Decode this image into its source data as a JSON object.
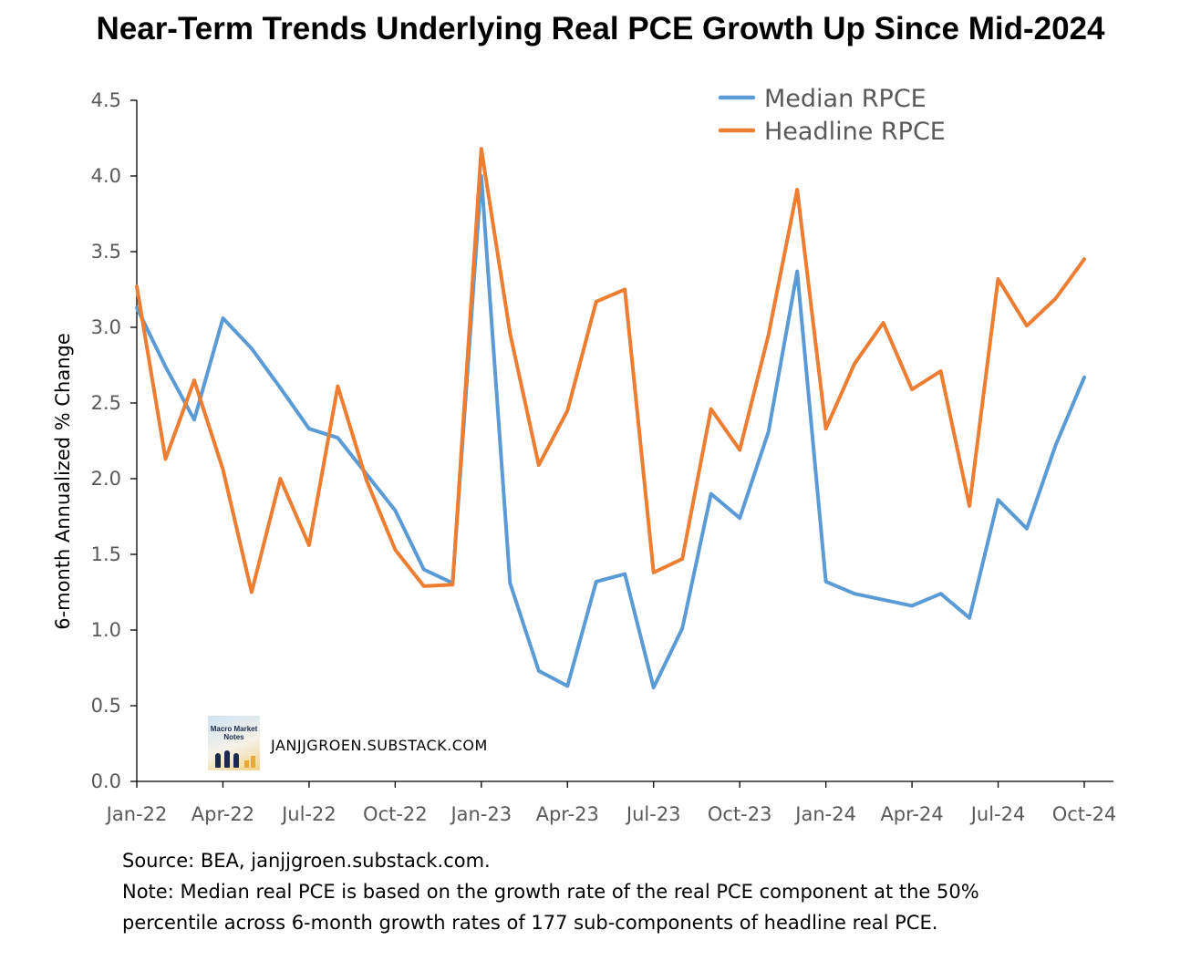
{
  "title": "Near-Term Trends Underlying Real PCE Growth Up Since Mid-2024",
  "chart_data": {
    "type": "line",
    "ylabel": "6-month Annualized % Change",
    "xlabel": "",
    "ylim": [
      0.0,
      4.5
    ],
    "yticks": [
      "0.0",
      "0.5",
      "1.0",
      "1.5",
      "2.0",
      "2.5",
      "3.0",
      "3.5",
      "4.0",
      "4.5"
    ],
    "x": [
      "Jan-22",
      "Feb-22",
      "Mar-22",
      "Apr-22",
      "May-22",
      "Jun-22",
      "Jul-22",
      "Aug-22",
      "Sep-22",
      "Oct-22",
      "Nov-22",
      "Dec-22",
      "Jan-23",
      "Feb-23",
      "Mar-23",
      "Apr-23",
      "May-23",
      "Jun-23",
      "Jul-23",
      "Aug-23",
      "Sep-23",
      "Oct-23",
      "Nov-23",
      "Dec-23",
      "Jan-24",
      "Feb-24",
      "Mar-24",
      "Apr-24",
      "May-24",
      "Jun-24",
      "Jul-24",
      "Aug-24",
      "Sep-24",
      "Oct-24"
    ],
    "xtick_labels": [
      "Jan-22",
      "Apr-22",
      "Jul-22",
      "Oct-22",
      "Jan-23",
      "Apr-23",
      "Jul-23",
      "Oct-23",
      "Jan-24",
      "Apr-24",
      "Jul-24",
      "Oct-24"
    ],
    "grid": false,
    "legend": "top-right",
    "series": [
      {
        "name": "Median RPCE",
        "color": "#5b9bd5",
        "values": [
          3.13,
          2.74,
          2.39,
          3.06,
          2.86,
          2.6,
          2.33,
          2.27,
          2.03,
          1.79,
          1.4,
          1.31,
          4.0,
          1.31,
          0.73,
          0.63,
          1.32,
          1.37,
          0.62,
          1.01,
          1.9,
          1.74,
          2.31,
          3.37,
          1.32,
          1.24,
          1.2,
          1.16,
          1.24,
          1.08,
          1.86,
          1.67,
          2.22,
          2.67
        ]
      },
      {
        "name": "Headline RPCE",
        "color": "#ed7d31",
        "values": [
          3.27,
          2.13,
          2.65,
          2.06,
          1.25,
          2.0,
          1.56,
          2.61,
          1.99,
          1.53,
          1.29,
          1.3,
          4.18,
          2.96,
          2.09,
          2.45,
          3.17,
          3.25,
          1.38,
          1.47,
          2.46,
          2.19,
          2.95,
          3.91,
          2.33,
          2.76,
          3.03,
          2.59,
          2.71,
          1.82,
          3.32,
          3.01,
          3.19,
          3.45
        ]
      }
    ]
  },
  "watermark": {
    "text": "JANJJGROEN.SUBSTACK.COM",
    "logo_line1": "Macro Market",
    "logo_line2": "Notes"
  },
  "source": "Source: BEA, janjjgroen.substack.com.",
  "note_line1": "Note: Median real PCE is based on the growth rate of the real PCE component at the 50%",
  "note_line2": "percentile across 6-month growth rates of 177 sub-components of headline real PCE."
}
